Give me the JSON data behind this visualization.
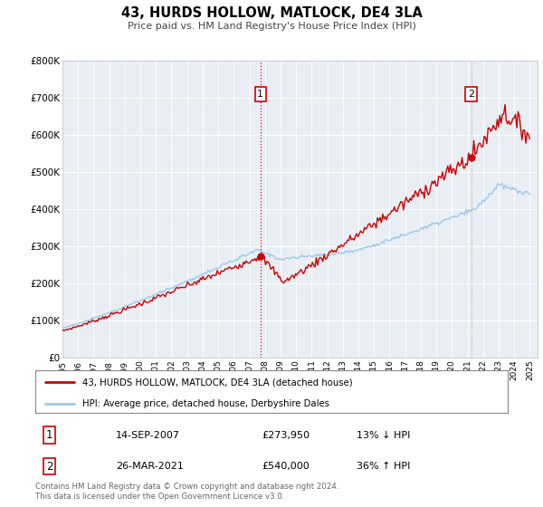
{
  "title": "43, HURDS HOLLOW, MATLOCK, DE4 3LA",
  "subtitle": "Price paid vs. HM Land Registry's House Price Index (HPI)",
  "ylim": [
    0,
    800000
  ],
  "yticks": [
    0,
    100000,
    200000,
    300000,
    400000,
    500000,
    600000,
    700000,
    800000
  ],
  "ytick_labels": [
    "£0",
    "£100K",
    "£200K",
    "£300K",
    "£400K",
    "£500K",
    "£600K",
    "£700K",
    "£800K"
  ],
  "hpi_color": "#9EC8E8",
  "price_color": "#CC0000",
  "dot_color": "#CC0000",
  "vline1_color": "#CC0000",
  "vline2_color": "#AAAAAA",
  "plot_bg": "#E8EEF4",
  "grid_color": "#FFFFFF",
  "legend_label_red": "43, HURDS HOLLOW, MATLOCK, DE4 3LA (detached house)",
  "legend_label_blue": "HPI: Average price, detached house, Derbyshire Dales",
  "sale1_date": "14-SEP-2007",
  "sale1_price": "£273,950",
  "sale1_hpi": "13% ↓ HPI",
  "sale2_date": "26-MAR-2021",
  "sale2_price": "£540,000",
  "sale2_hpi": "36% ↑ HPI",
  "footer": "Contains HM Land Registry data © Crown copyright and database right 2024.\nThis data is licensed under the Open Government Licence v3.0.",
  "sale1_year": 2007.71,
  "sale1_value": 273950,
  "sale2_year": 2021.23,
  "sale2_value": 540000
}
